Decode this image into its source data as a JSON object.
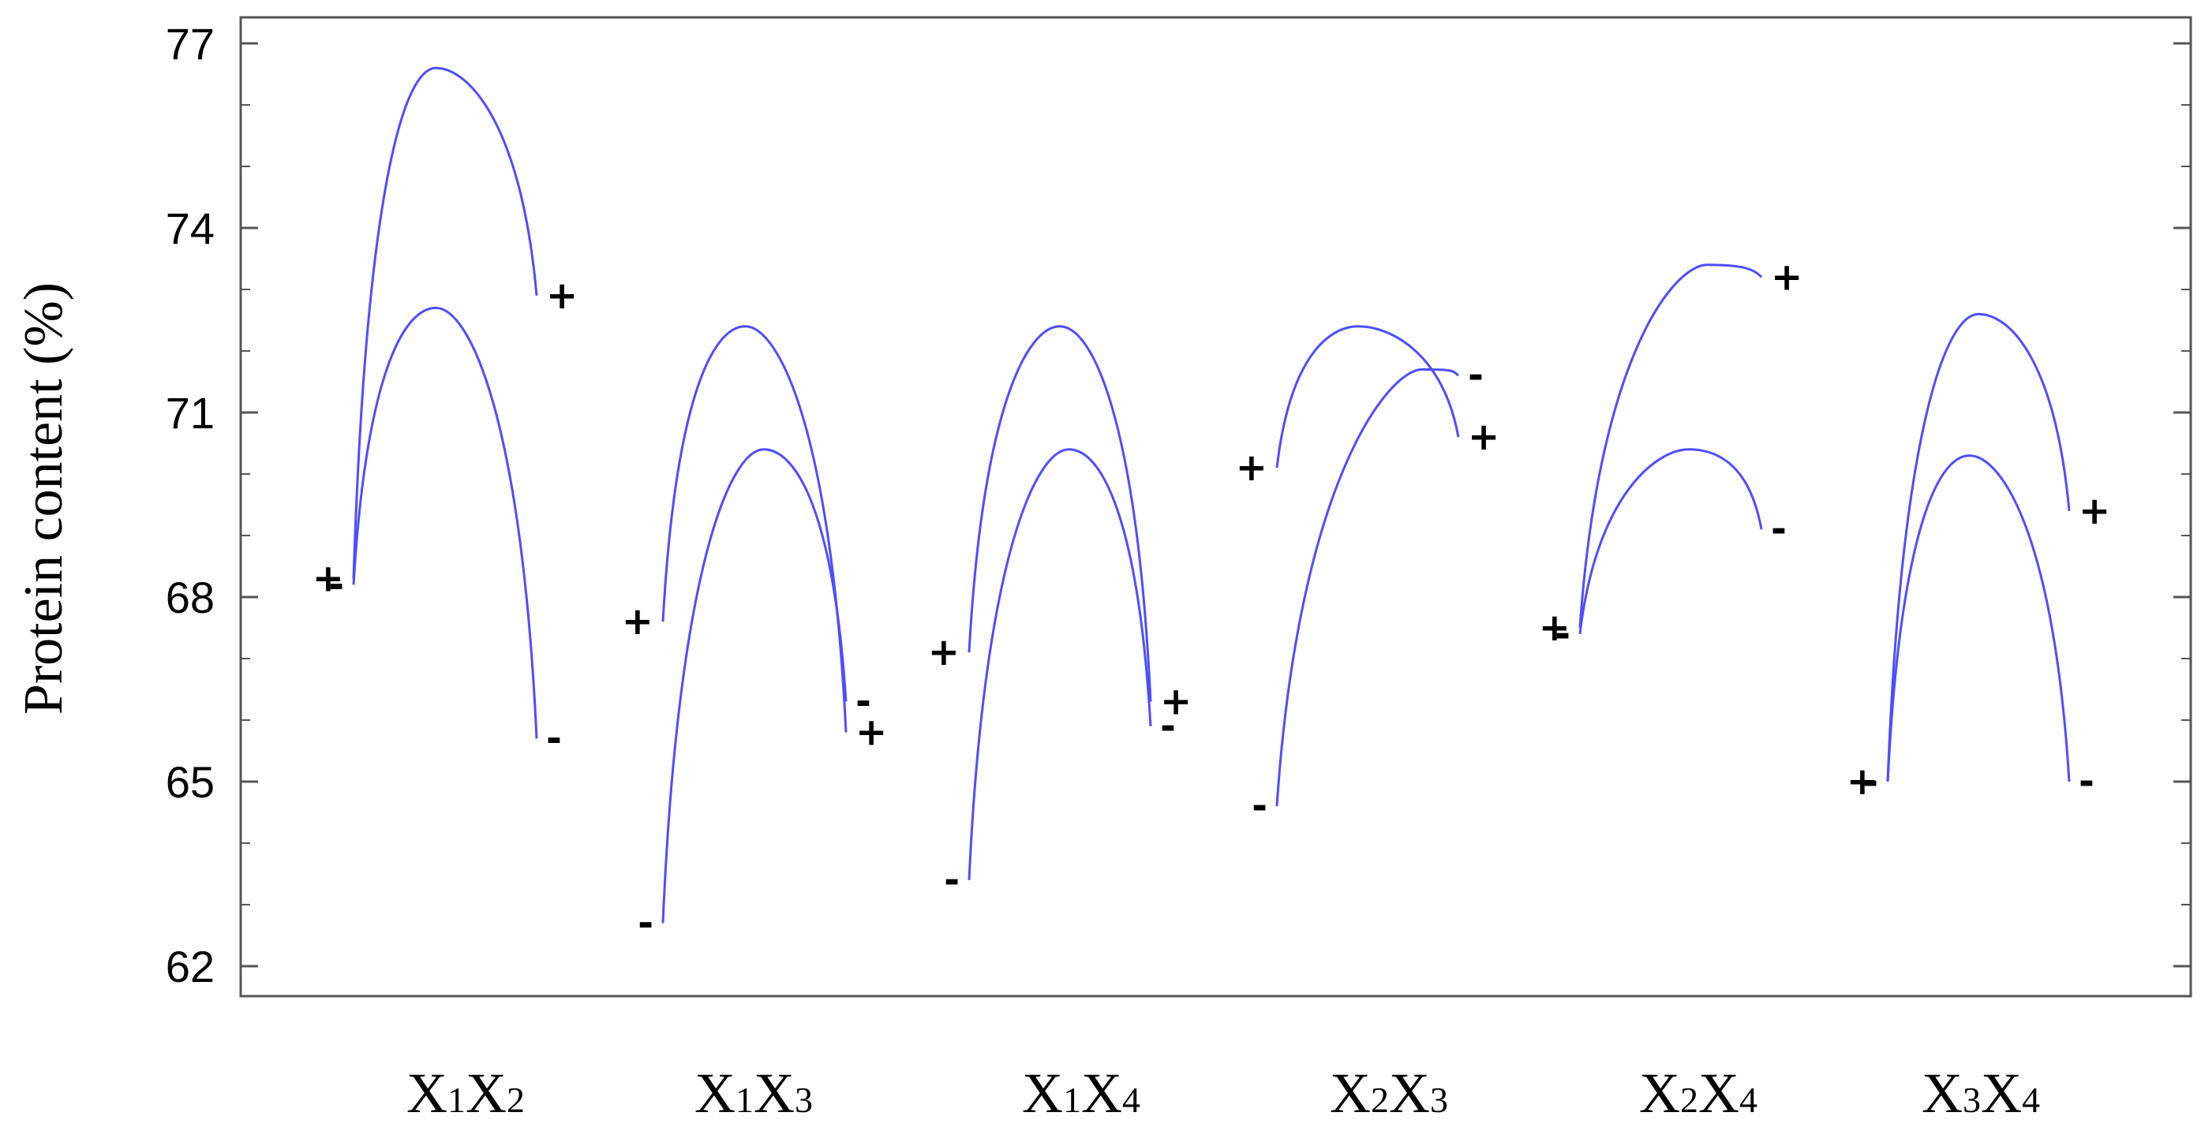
{
  "chart_data": {
    "type": "line",
    "title": "",
    "ylabel": "Protein content (%)",
    "xlabel": "",
    "ylim": [
      61.5,
      77.5
    ],
    "yticks": [
      62,
      65,
      68,
      71,
      74,
      77
    ],
    "ytick_labels": [
      "62",
      "65",
      "68",
      "71",
      "74",
      "77"
    ],
    "grid": false,
    "curve_color": "#4d4dff",
    "panels": [
      {
        "label": "X1X2",
        "label_base": [
          "X",
          "X"
        ],
        "label_sub": [
          "1",
          "2"
        ],
        "curves": [
          {
            "points": [
              [
                0,
                68.3
              ],
              [
                0.45,
                76.6
              ],
              [
                1,
                72.9
              ]
            ],
            "start_marker": "+",
            "end_marker": "+"
          },
          {
            "points": [
              [
                0,
                68.2
              ],
              [
                0.45,
                72.7
              ],
              [
                1,
                65.7
              ]
            ],
            "start_marker": "-",
            "end_marker": "-"
          }
        ]
      },
      {
        "label": "X1X3",
        "label_base": [
          "X",
          "X"
        ],
        "label_sub": [
          "1",
          "3"
        ],
        "curves": [
          {
            "points": [
              [
                0,
                67.6
              ],
              [
                0.45,
                72.4
              ],
              [
                1,
                65.8
              ]
            ],
            "start_marker": "+",
            "end_marker": "+"
          },
          {
            "points": [
              [
                0,
                62.7
              ],
              [
                0.55,
                70.4
              ],
              [
                1,
                66.3
              ]
            ],
            "start_marker": "-",
            "end_marker": "-"
          }
        ]
      },
      {
        "label": "X1X4",
        "label_base": [
          "X",
          "X"
        ],
        "label_sub": [
          "1",
          "4"
        ],
        "curves": [
          {
            "points": [
              [
                0,
                67.1
              ],
              [
                0.5,
                72.4
              ],
              [
                1,
                66.3
              ]
            ],
            "start_marker": "+",
            "end_marker": "+"
          },
          {
            "points": [
              [
                0,
                63.4
              ],
              [
                0.55,
                70.4
              ],
              [
                1,
                65.9
              ]
            ],
            "start_marker": "-",
            "end_marker": "-"
          }
        ]
      },
      {
        "label": "X2X3",
        "label_base": [
          "X",
          "X"
        ],
        "label_sub": [
          "2",
          "3"
        ],
        "curves": [
          {
            "points": [
              [
                0,
                70.1
              ],
              [
                0.45,
                72.4
              ],
              [
                1,
                70.6
              ]
            ],
            "start_marker": "+",
            "end_marker": "+"
          },
          {
            "points": [
              [
                0,
                64.6
              ],
              [
                0.8,
                71.7
              ],
              [
                1,
                71.6
              ]
            ],
            "start_marker": "-",
            "end_marker": "-"
          }
        ]
      },
      {
        "label": "X2X4",
        "label_base": [
          "X",
          "X"
        ],
        "label_sub": [
          "2",
          "4"
        ],
        "curves": [
          {
            "points": [
              [
                0,
                67.5
              ],
              [
                0.7,
                73.4
              ],
              [
                1,
                73.2
              ]
            ],
            "start_marker": "+",
            "end_marker": "+"
          },
          {
            "points": [
              [
                0,
                67.4
              ],
              [
                0.6,
                70.4
              ],
              [
                1,
                69.1
              ]
            ],
            "start_marker": "-",
            "end_marker": "-"
          }
        ]
      },
      {
        "label": "X3X4",
        "label_base": [
          "X",
          "X"
        ],
        "label_sub": [
          "3",
          "4"
        ],
        "curves": [
          {
            "points": [
              [
                0,
                65.0
              ],
              [
                0.5,
                72.6
              ],
              [
                1,
                69.4
              ]
            ],
            "start_marker": "+",
            "end_marker": "+"
          },
          {
            "points": [
              [
                0,
                65.0
              ],
              [
                0.45,
                70.3
              ],
              [
                1,
                65.0
              ]
            ],
            "start_marker": "-",
            "end_marker": "-"
          }
        ]
      }
    ]
  }
}
